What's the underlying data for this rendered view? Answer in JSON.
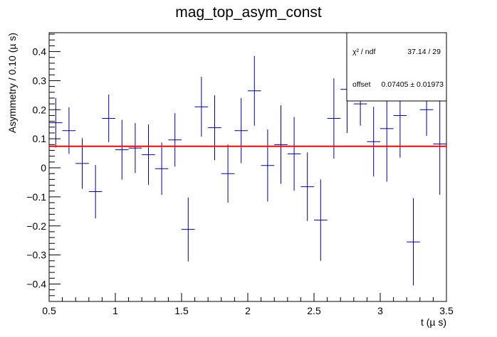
{
  "chart_data": {
    "type": "scatter",
    "title": "mag_top_asym_const",
    "xlabel": "t (µ s)",
    "ylabel": "Asymmetry / 0.10 (µ s)",
    "xlim": [
      0.5,
      3.5
    ],
    "ylim": [
      -0.46,
      0.465
    ],
    "x_ticks": [
      "0.5",
      "1",
      "1.5",
      "2",
      "2.5",
      "3",
      "3.5"
    ],
    "x_tick_values": [
      0.5,
      1,
      1.5,
      2,
      2.5,
      3,
      3.5
    ],
    "y_ticks": [
      "−0.4",
      "−0.3",
      "−0.2",
      "−0.1",
      "0",
      "0.1",
      "0.2",
      "0.3",
      "0.4"
    ],
    "y_tick_values": [
      -0.4,
      -0.3,
      -0.2,
      -0.1,
      0,
      0.1,
      0.2,
      0.3,
      0.4
    ],
    "bin_width": 0.1,
    "series": [
      {
        "color": "#000080",
        "points": [
          {
            "x": 0.55,
            "y": 0.155,
            "err": 0.085
          },
          {
            "x": 0.65,
            "y": 0.128,
            "err": 0.08
          },
          {
            "x": 0.75,
            "y": 0.015,
            "err": 0.087
          },
          {
            "x": 0.85,
            "y": -0.082,
            "err": 0.092
          },
          {
            "x": 0.95,
            "y": 0.17,
            "err": 0.082
          },
          {
            "x": 1.05,
            "y": 0.062,
            "err": 0.103
          },
          {
            "x": 1.15,
            "y": 0.068,
            "err": 0.086
          },
          {
            "x": 1.25,
            "y": 0.045,
            "err": 0.104
          },
          {
            "x": 1.35,
            "y": -0.003,
            "err": 0.09
          },
          {
            "x": 1.45,
            "y": 0.096,
            "err": 0.092
          },
          {
            "x": 1.55,
            "y": -0.212,
            "err": 0.11
          },
          {
            "x": 1.65,
            "y": 0.21,
            "err": 0.103
          },
          {
            "x": 1.75,
            "y": 0.138,
            "err": 0.112
          },
          {
            "x": 1.85,
            "y": -0.02,
            "err": 0.1
          },
          {
            "x": 1.95,
            "y": 0.128,
            "err": 0.112
          },
          {
            "x": 2.05,
            "y": 0.265,
            "err": 0.12
          },
          {
            "x": 2.15,
            "y": 0.008,
            "err": 0.124
          },
          {
            "x": 2.25,
            "y": 0.08,
            "err": 0.135
          },
          {
            "x": 2.35,
            "y": 0.048,
            "err": 0.127
          },
          {
            "x": 2.45,
            "y": -0.065,
            "err": 0.118
          },
          {
            "x": 2.55,
            "y": -0.18,
            "err": 0.14
          },
          {
            "x": 2.65,
            "y": 0.17,
            "err": 0.138
          },
          {
            "x": 2.75,
            "y": 0.27,
            "err": 0.15
          },
          {
            "x": 2.85,
            "y": 0.22,
            "err": 0.075
          },
          {
            "x": 2.95,
            "y": 0.09,
            "err": 0.12
          },
          {
            "x": 3.05,
            "y": 0.135,
            "err": 0.183
          },
          {
            "x": 3.15,
            "y": 0.18,
            "err": 0.145
          },
          {
            "x": 3.25,
            "y": -0.255,
            "err": 0.15
          },
          {
            "x": 3.35,
            "y": 0.2,
            "err": 0.09
          },
          {
            "x": 3.45,
            "y": 0.082,
            "err": 0.175
          }
        ]
      }
    ],
    "fit": {
      "function": "const",
      "value": 0.07405,
      "color": "#ff0000"
    },
    "stats_box": {
      "chi2_label": "χ² / ndf",
      "chi2_value": "37.14 / 29",
      "offset_label": "offset",
      "offset_value": "0.07405 ± 0.01973"
    },
    "grid": false,
    "legend": "top-right"
  }
}
